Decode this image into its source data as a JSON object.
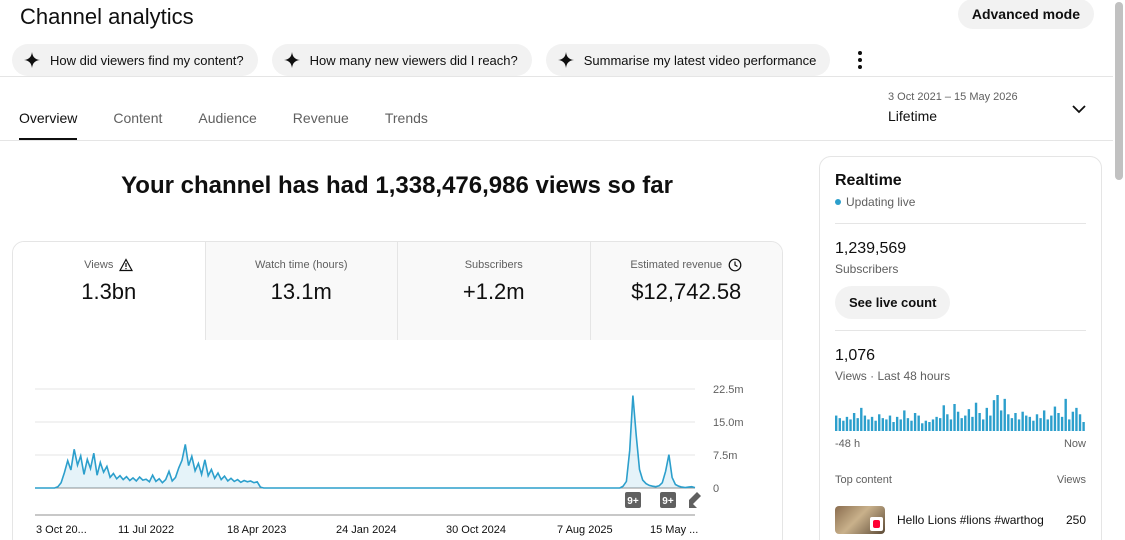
{
  "header": {
    "title": "Channel analytics",
    "advanced_mode": "Advanced mode"
  },
  "chips": [
    {
      "label": "How did viewers find my content?"
    },
    {
      "label": "How many new viewers did I reach?"
    },
    {
      "label": "Summarise my latest video performance"
    }
  ],
  "tabs": [
    {
      "label": "Overview",
      "active": true
    },
    {
      "label": "Content"
    },
    {
      "label": "Audience"
    },
    {
      "label": "Revenue"
    },
    {
      "label": "Trends"
    }
  ],
  "date": {
    "range": "3 Oct 2021 – 15 May 2026",
    "preset": "Lifetime"
  },
  "headline": "Your channel has had 1,338,476,986 views so far",
  "metrics": [
    {
      "label": "Views",
      "value": "1.3bn",
      "icon": "warning-icon"
    },
    {
      "label": "Watch time (hours)",
      "value": "13.1m"
    },
    {
      "label": "Subscribers",
      "value": "+1.2m"
    },
    {
      "label": "Estimated revenue",
      "value": "$12,742.58",
      "icon": "clock-icon"
    }
  ],
  "chart_data": {
    "type": "line",
    "x_ticks": [
      "3 Oct 20...",
      "11 Jul 2022",
      "18 Apr 2023",
      "24 Jan 2024",
      "30 Oct 2024",
      "7 Aug 2025",
      "15 May ..."
    ],
    "y_ticks": [
      "22.5m",
      "15.0m",
      "7.5m",
      "0"
    ],
    "ylim": [
      0,
      22.5
    ],
    "series": [
      {
        "color": "#2c9fcc",
        "values": [
          0,
          0,
          0,
          0,
          0,
          0,
          0,
          0.3,
          1.2,
          3.5,
          6.2,
          4.1,
          8.8,
          5.2,
          7.3,
          3.1,
          6.5,
          4.4,
          7.9,
          2.9,
          5.8,
          3.6,
          4.9,
          2.4,
          3.3,
          2.1,
          2.8,
          1.9,
          2.6,
          1.7,
          2.3,
          1.6,
          2.5,
          1.8,
          2.0,
          1.4,
          2.9,
          1.5,
          2.1,
          1.2,
          1.9,
          3.8,
          1.6,
          2.4,
          4.6,
          6.3,
          9.9,
          5.1,
          7.2,
          3.9,
          5.6,
          3.1,
          6.4,
          2.8,
          4.2,
          2.2,
          3.4,
          1.9,
          2.7,
          1.6,
          2.2,
          1.5,
          1.9,
          1.3,
          1.7,
          1.4,
          1.6,
          1.2,
          1.4,
          0.2,
          0,
          0,
          0,
          0,
          0,
          0,
          0,
          0,
          0,
          0,
          0,
          0,
          0,
          0,
          0,
          0,
          0,
          0,
          0,
          0,
          0,
          0,
          0,
          0,
          0,
          0,
          0,
          0,
          0,
          0,
          0,
          0,
          0,
          0,
          0,
          0,
          0,
          0,
          0,
          0,
          0,
          0,
          0,
          0,
          0,
          0,
          0,
          0,
          0,
          0,
          0,
          0,
          0,
          0,
          0,
          0,
          0,
          0,
          0,
          0,
          0,
          0,
          0,
          0,
          0,
          0,
          0,
          0,
          0,
          0,
          0,
          0,
          0,
          0,
          0,
          0,
          0,
          0,
          0,
          0,
          0,
          0,
          0,
          0,
          0,
          0,
          0,
          0,
          0,
          0,
          0,
          0,
          0,
          0,
          0,
          0,
          0,
          0,
          0,
          0,
          0,
          0,
          0,
          0,
          0,
          0,
          0,
          0,
          0,
          0,
          0.4,
          1.5,
          8.5,
          21.0,
          12.0,
          4.2,
          1.8,
          1.0,
          0.6,
          0.4,
          0.3,
          0.5,
          1.2,
          3.8,
          7.6,
          2.4,
          0.8,
          0.4,
          0.2,
          0.1,
          0.2,
          0.3,
          0.1
        ]
      }
    ],
    "markers": [
      {
        "label": "9+"
      },
      {
        "label": "9+"
      }
    ]
  },
  "realtime": {
    "title": "Realtime",
    "status": "Updating live",
    "subscribers": "1,239,569",
    "subscribers_label": "Subscribers",
    "live_count_button": "See live count",
    "views": "1,076",
    "views_label": "Views · Last 48 hours",
    "axis_left": "-48 h",
    "axis_right": "Now",
    "mini_values": [
      12,
      10,
      8,
      11,
      9,
      14,
      10,
      18,
      12,
      9,
      11,
      8,
      13,
      10,
      9,
      12,
      7,
      11,
      9,
      16,
      10,
      8,
      14,
      12,
      6,
      8,
      7,
      9,
      11,
      10,
      20,
      13,
      9,
      21,
      15,
      10,
      12,
      17,
      11,
      22,
      14,
      9,
      18,
      12,
      24,
      28,
      16,
      25,
      13,
      10,
      14,
      9,
      15,
      12,
      11,
      8,
      13,
      10,
      16,
      9,
      12,
      19,
      14,
      11,
      25,
      9,
      15,
      18,
      13,
      7
    ],
    "top_content_label": "Top content",
    "top_views_label": "Views",
    "top_item": {
      "title": "Hello Lions #lions #warthog",
      "views": "250"
    }
  }
}
